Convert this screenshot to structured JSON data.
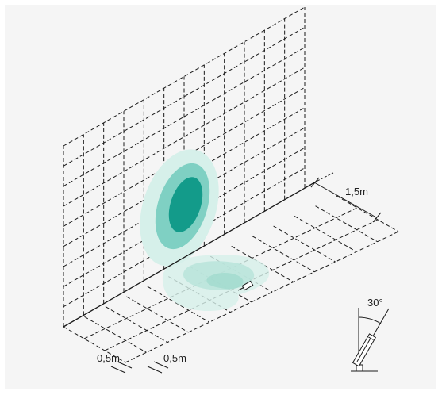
{
  "labels": {
    "depth_dimension": "1,5m",
    "grid_spacing_left": "0,5m",
    "grid_spacing_right": "0,5m",
    "tilt_angle": "30°"
  },
  "colors": {
    "background": "#f5f5f5",
    "line": "#1a1a1a",
    "light_core": "#139b8a",
    "light_mid": "#7fd0c3",
    "light_outer": "#c9ece5"
  }
}
